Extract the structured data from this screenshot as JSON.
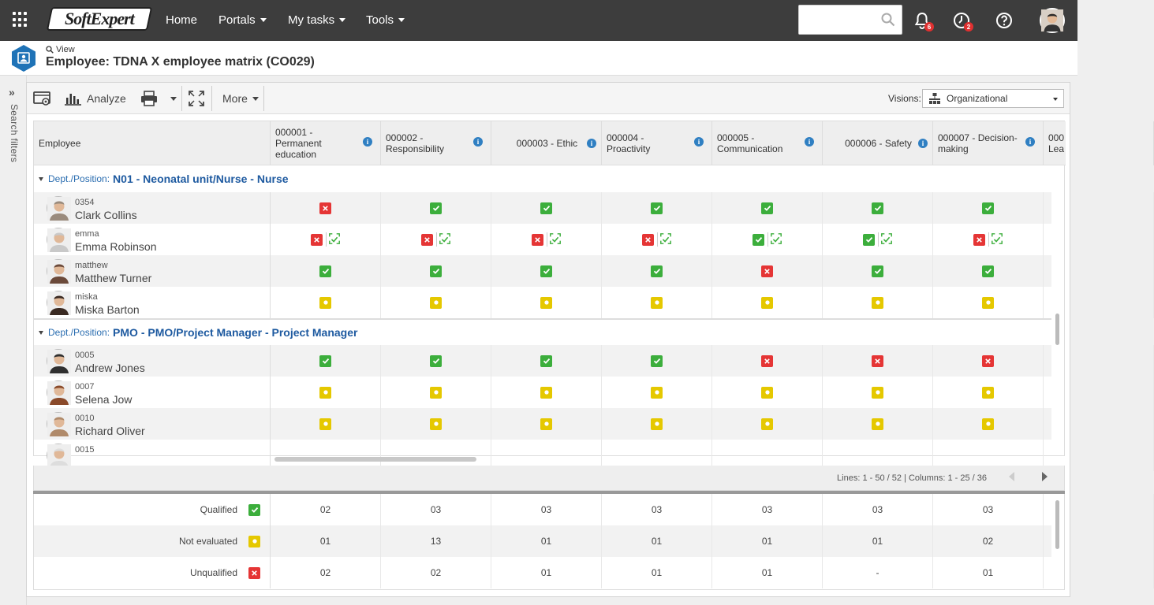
{
  "nav": {
    "logo": "SoftExpert",
    "home": "Home",
    "portals": "Portals",
    "my_tasks": "My tasks",
    "tools": "Tools",
    "search_placeholder": "",
    "notifications_count": "6",
    "tasks_count": "2"
  },
  "header": {
    "view_label": "View",
    "title": "Employee: TDNA X employee matrix (CO029)"
  },
  "sidebar": {
    "search_filters": "Search filters"
  },
  "toolbar": {
    "analyze": "Analyze",
    "more": "More",
    "visions_label": "Visions:",
    "visions_value": "Organizational"
  },
  "grid": {
    "employee_header": "Employee",
    "columns": [
      {
        "line1": "000001 -",
        "line2": "Permanent",
        "line3": "education"
      },
      {
        "line1": "000002 -",
        "line2": "Responsibility",
        "line3": ""
      },
      {
        "line1": "000003 - Ethic",
        "line2": "",
        "line3": ""
      },
      {
        "line1": "000004 -",
        "line2": "Proactivity",
        "line3": ""
      },
      {
        "line1": "000005 -",
        "line2": "Communication",
        "line3": ""
      },
      {
        "line1": "000006 - Safety",
        "line2": "",
        "line3": ""
      },
      {
        "line1": "000007 - Decision-",
        "line2": "making",
        "line3": ""
      },
      {
        "line1": "000",
        "line2": "Lea",
        "line3": ""
      }
    ],
    "groups": [
      {
        "label": "Dept./Position:",
        "value": "N01 - Neonatal unit/Nurse - Nurse",
        "rows": [
          {
            "code": "0354",
            "name": "Clark Collins",
            "status": [
              "u",
              "q",
              "q",
              "q",
              "q",
              "q",
              "q"
            ],
            "training": false
          },
          {
            "code": "emma",
            "name": "Emma Robinson",
            "status": [
              "u",
              "u",
              "u",
              "u",
              "q",
              "q",
              "u"
            ],
            "training": true
          },
          {
            "code": "matthew",
            "name": "Matthew Turner",
            "status": [
              "q",
              "q",
              "q",
              "q",
              "u",
              "q",
              "q"
            ],
            "training": false
          },
          {
            "code": "miska",
            "name": "Miska Barton",
            "status": [
              "n",
              "n",
              "n",
              "n",
              "n",
              "n",
              "n"
            ],
            "training": false
          }
        ]
      },
      {
        "label": "Dept./Position:",
        "value": "PMO - PMO/Project Manager - Project Manager",
        "rows": [
          {
            "code": "0005",
            "name": "Andrew Jones",
            "status": [
              "q",
              "q",
              "q",
              "q",
              "u",
              "u",
              "u"
            ],
            "training": false
          },
          {
            "code": "0007",
            "name": "Selena Jow",
            "status": [
              "n",
              "n",
              "n",
              "n",
              "n",
              "n",
              "n"
            ],
            "training": false
          },
          {
            "code": "0010",
            "name": "Richard Oliver",
            "status": [
              "n",
              "n",
              "n",
              "n",
              "n",
              "n",
              "n"
            ],
            "training": false
          },
          {
            "code": "0015",
            "name": "",
            "status": [],
            "training": false
          }
        ]
      }
    ],
    "lines_info": "Lines: 1 - 50 / 52 | Columns: 1 - 25 / 36"
  },
  "summary": [
    {
      "label": "Qualified",
      "kind": "q",
      "values": [
        "02",
        "03",
        "03",
        "03",
        "03",
        "03",
        "03"
      ]
    },
    {
      "label": "Not evaluated",
      "kind": "n",
      "values": [
        "01",
        "13",
        "01",
        "01",
        "01",
        "01",
        "02"
      ]
    },
    {
      "label": "Unqualified",
      "kind": "u",
      "values": [
        "02",
        "02",
        "01",
        "01",
        "01",
        "-",
        "01"
      ]
    }
  ],
  "colors": {
    "topbar": "#3d3d3d",
    "qualified": "#3cae3c",
    "not_evaluated": "#e5c800",
    "unqualified": "#e53535",
    "link": "#1e5aa0"
  }
}
